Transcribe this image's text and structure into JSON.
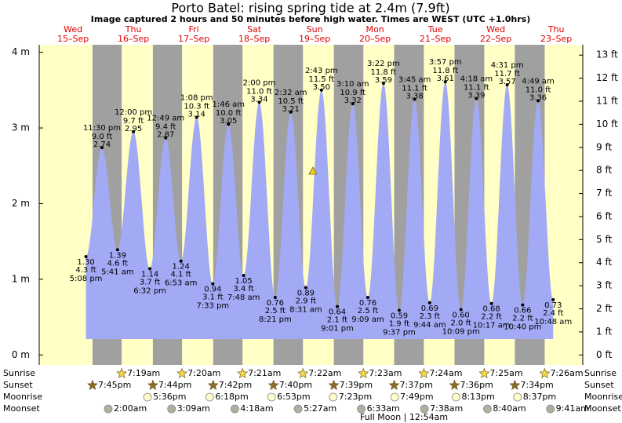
{
  "chart_data": {
    "type": "tide",
    "title": "Porto Batel: rising  spring tide at 2.4m (7.9ft)",
    "subtitle": "Image captured 2 hours and 50 minutes before high water. Times are WEST (UTC +1.0hrs)",
    "categories": [
      "Wed",
      "Thu",
      "Fri",
      "Sat",
      "Sun",
      "Mon",
      "Tue",
      "Wed",
      "Thu"
    ],
    "dates": [
      "15–Sep",
      "16–Sep",
      "17–Sep",
      "18–Sep",
      "19–Sep",
      "20–Sep",
      "21–Sep",
      "22–Sep",
      "23–Sep"
    ],
    "x": [
      "5:08 pm",
      "11:30 pm",
      "5:41 am",
      "12:00 pm",
      "6:32 pm",
      "12:49 am",
      "6:53 am",
      "1:08 pm",
      "7:33 pm",
      "1:46 am",
      "7:48 am",
      "2:00 pm",
      "8:21 pm",
      "2:32 am",
      "8:31 am",
      "2:43 pm",
      "9:01 pm",
      "3:10 am",
      "9:09 am",
      "3:22 pm",
      "9:37 pm",
      "3:45 am",
      "9:44 am",
      "3:57 pm",
      "10:09 pm",
      "4:18 am",
      "10:17 am",
      "4:31 pm",
      "10:40 pm",
      "4:49 am",
      "10:48 am"
    ],
    "values": [
      1.3,
      2.74,
      1.39,
      2.95,
      1.14,
      2.87,
      1.24,
      3.14,
      0.94,
      3.05,
      1.05,
      3.34,
      0.76,
      3.21,
      0.89,
      3.5,
      0.64,
      3.32,
      0.76,
      3.59,
      0.59,
      3.38,
      0.69,
      3.61,
      0.6,
      3.39,
      0.68,
      3.57,
      0.66,
      3.36,
      0.73
    ],
    "value_labels": [
      "1.30",
      "2.74",
      "1.39",
      "2.95",
      "1.14",
      "2.87",
      "1.24",
      "3.14",
      "0.94",
      "3.05",
      "1.05",
      "3.34",
      "0.76",
      "3.21",
      "0.89",
      "3.50",
      "0.64",
      "3.32",
      "0.76",
      "3.59",
      "0.59",
      "3.38",
      "0.69",
      "3.61",
      "0.60",
      "3.39",
      "0.68",
      "3.57",
      "0.66",
      "3.36",
      "0.73"
    ],
    "ft_labels": [
      "4.3 ft",
      "9.0 ft",
      "4.6 ft",
      "9.7 ft",
      "3.7 ft",
      "9.4 ft",
      "4.1 ft",
      "10.3 ft",
      "3.1 ft",
      "10.0 ft",
      "3.4 ft",
      "11.0 ft",
      "2.5 ft",
      "10.5 ft",
      "2.9 ft",
      "11.5 ft",
      "2.1 ft",
      "10.9 ft",
      "2.5 ft",
      "11.8 ft",
      "1.9 ft",
      "11.1 ft",
      "2.3 ft",
      "11.8 ft",
      "2.0 ft",
      "11.1 ft",
      "2.2 ft",
      "11.7 ft",
      "2.2 ft",
      "11.0 ft",
      "2.4 ft"
    ],
    "ylim": [
      -0.08,
      4.1
    ],
    "yticks": [
      {
        "value": 0,
        "label": "0 m"
      },
      {
        "value": 1,
        "label": "1 m"
      },
      {
        "value": 2,
        "label": "2 m"
      },
      {
        "value": 3,
        "label": "3 m"
      },
      {
        "value": 4,
        "label": "4 m"
      }
    ],
    "y2lim": [
      -0.262,
      13.45
    ],
    "y2ticks": [
      {
        "value": 0,
        "label": "0 ft"
      },
      {
        "value": 1,
        "label": "1 ft"
      },
      {
        "value": 2,
        "label": "2 ft"
      },
      {
        "value": 3,
        "label": "3 ft"
      },
      {
        "value": 4,
        "label": "4 ft"
      },
      {
        "value": 5,
        "label": "5 ft"
      },
      {
        "value": 6,
        "label": "6 ft"
      },
      {
        "value": 7,
        "label": "7 ft"
      },
      {
        "value": 8,
        "label": "8 ft"
      },
      {
        "value": 9,
        "label": "9 ft"
      },
      {
        "value": 10,
        "label": "10 ft"
      },
      {
        "value": 11,
        "label": "11 ft"
      },
      {
        "value": 12,
        "label": "12 ft"
      },
      {
        "value": 13,
        "label": "13 ft"
      }
    ],
    "color": "#a3aaf5",
    "day_color": "#ffffc6",
    "night_color": "#a0a0a0",
    "rows": [
      {
        "name": "Sunrise",
        "times": [
          null,
          "7:19am",
          "7:20am",
          "7:21am",
          "7:22am",
          "7:23am",
          "7:24am",
          "7:25am",
          "7:26am"
        ]
      },
      {
        "name": "Sunset",
        "times": [
          "7:45pm",
          "7:44pm",
          "7:42pm",
          "7:40pm",
          "7:39pm",
          "7:37pm",
          "7:36pm",
          "7:34pm",
          null
        ]
      },
      {
        "name": "Moonrise",
        "times": [
          null,
          "5:36pm",
          "6:18pm",
          "6:53pm",
          "7:23pm",
          "7:49pm",
          "8:13pm",
          "8:37pm",
          null
        ]
      },
      {
        "name": "Moonset",
        "times": [
          null,
          "2:00am",
          "3:09am",
          "4:18am",
          "5:27am",
          "6:33am",
          "7:38am",
          "8:40am",
          "9:41am"
        ]
      }
    ],
    "footer": "Full Moon | 12:54am"
  }
}
